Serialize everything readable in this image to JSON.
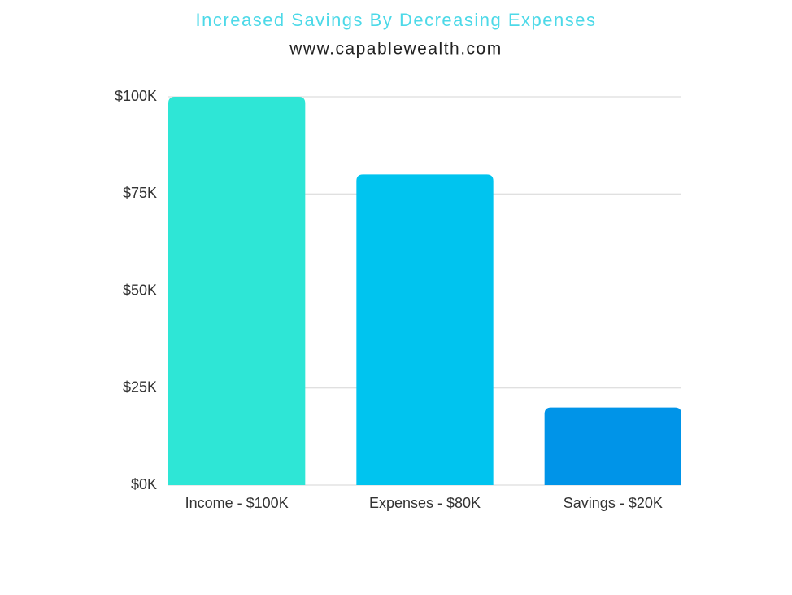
{
  "chart_data": {
    "type": "bar",
    "title": "Increased Savings By Decreasing Expenses",
    "subtitle": "www.capablewealth.com",
    "categories": [
      "Income - $100K",
      "Expenses - $80K",
      "Savings - $20K"
    ],
    "values": [
      100000,
      80000,
      20000
    ],
    "colors": [
      "#2ee6d6",
      "#00c4ef",
      "#0094e8"
    ],
    "ylim": [
      0,
      100000
    ],
    "yticks": [
      {
        "value": 0,
        "label": "$0K"
      },
      {
        "value": 25000,
        "label": "$25K"
      },
      {
        "value": 50000,
        "label": "$50K"
      },
      {
        "value": 75000,
        "label": "$75K"
      },
      {
        "value": 100000,
        "label": "$100K"
      }
    ],
    "grid": true
  }
}
